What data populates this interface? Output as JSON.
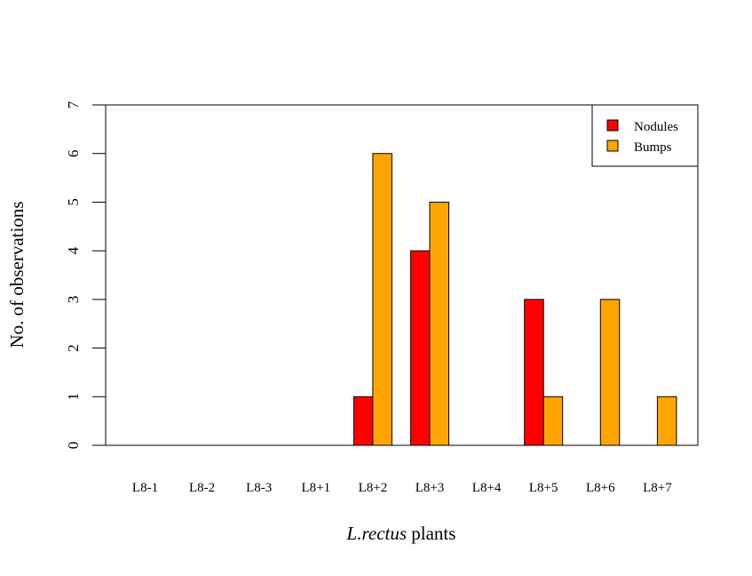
{
  "chart_data": {
    "type": "bar",
    "categories": [
      "L8-1",
      "L8-2",
      "L8-3",
      "L8+1",
      "L8+2",
      "L8+3",
      "L8+4",
      "L8+5",
      "L8+6",
      "L8+7"
    ],
    "series": [
      {
        "name": "Nodules",
        "color": "#ff0000",
        "values": [
          0,
          0,
          0,
          0,
          1,
          4,
          0,
          3,
          0,
          0
        ]
      },
      {
        "name": "Bumps",
        "color": "#ffa500",
        "values": [
          0,
          0,
          0,
          0,
          6,
          5,
          0,
          1,
          3,
          1
        ]
      }
    ],
    "ylabel": "No. of observations",
    "xlabel": {
      "italic": "L.rectus",
      "rest": " plants"
    },
    "ylim": [
      0,
      7
    ],
    "yticks": [
      0,
      1,
      2,
      3,
      4,
      5,
      6,
      7
    ],
    "legend_position": "top-right",
    "grid": false
  }
}
